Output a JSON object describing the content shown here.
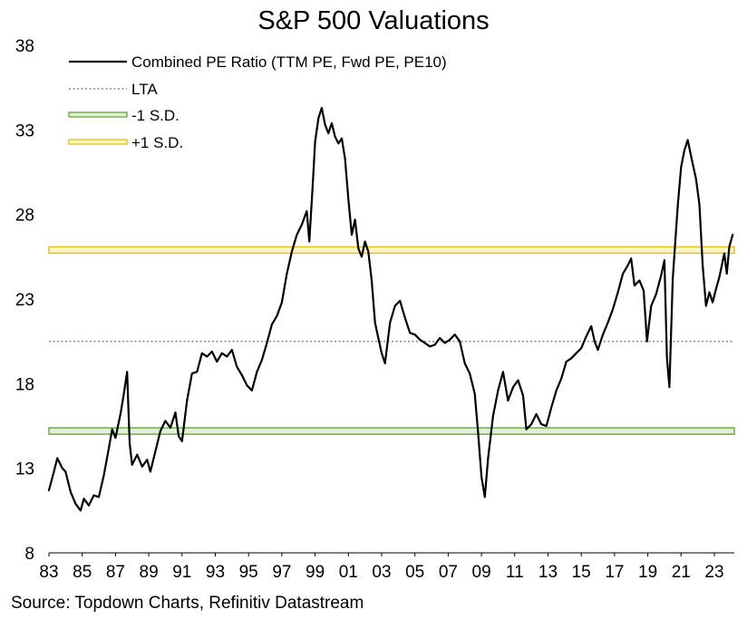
{
  "chart_data": {
    "type": "line",
    "title": "S&P 500 Valuations",
    "xlabel": "",
    "ylabel": "",
    "source": "Source: Topdown Charts, Refinitiv Datastream",
    "xlim": [
      1983.0,
      2024.2
    ],
    "ylim": [
      8,
      38
    ],
    "y_ticks": [
      8,
      13,
      18,
      23,
      28,
      33,
      38
    ],
    "x_ticks": [
      {
        "year": 1983,
        "label": "83"
      },
      {
        "year": 1985,
        "label": "85"
      },
      {
        "year": 1987,
        "label": "87"
      },
      {
        "year": 1989,
        "label": "89"
      },
      {
        "year": 1991,
        "label": "91"
      },
      {
        "year": 1993,
        "label": "93"
      },
      {
        "year": 1995,
        "label": "95"
      },
      {
        "year": 1997,
        "label": "97"
      },
      {
        "year": 1999,
        "label": "99"
      },
      {
        "year": 2001,
        "label": "01"
      },
      {
        "year": 2003,
        "label": "03"
      },
      {
        "year": 2005,
        "label": "05"
      },
      {
        "year": 2007,
        "label": "07"
      },
      {
        "year": 2009,
        "label": "09"
      },
      {
        "year": 2011,
        "label": "11"
      },
      {
        "year": 2013,
        "label": "13"
      },
      {
        "year": 2015,
        "label": "15"
      },
      {
        "year": 2017,
        "label": "17"
      },
      {
        "year": 2019,
        "label": "19"
      },
      {
        "year": 2021,
        "label": "21"
      },
      {
        "year": 2023,
        "label": "23"
      }
    ],
    "legend_position": "top-left",
    "grid": false,
    "reference_lines": [
      {
        "name": "LTA",
        "value": 20.5,
        "style": "dotted",
        "color": "#8c8c8c"
      },
      {
        "name": "-1 S.D.",
        "value": 15.2,
        "style": "double",
        "color": "#70ad47",
        "fill": "#e2efd9"
      },
      {
        "name": "+1 S.D.",
        "value": 25.9,
        "style": "double",
        "color": "#e8c31b",
        "fill": "#fff6c8"
      }
    ],
    "series": [
      {
        "name": "Combined PE Ratio (TTM PE, Fwd PE, PE10)",
        "color": "#000000",
        "points": [
          [
            1983.0,
            11.7
          ],
          [
            1983.3,
            12.8
          ],
          [
            1983.5,
            13.6
          ],
          [
            1983.8,
            13.0
          ],
          [
            1984.0,
            12.8
          ],
          [
            1984.3,
            11.6
          ],
          [
            1984.6,
            10.9
          ],
          [
            1984.9,
            10.5
          ],
          [
            1985.1,
            11.2
          ],
          [
            1985.4,
            10.8
          ],
          [
            1985.7,
            11.4
          ],
          [
            1986.0,
            11.3
          ],
          [
            1986.3,
            12.6
          ],
          [
            1986.6,
            14.2
          ],
          [
            1986.8,
            15.3
          ],
          [
            1987.0,
            14.8
          ],
          [
            1987.3,
            16.2
          ],
          [
            1987.5,
            17.4
          ],
          [
            1987.7,
            18.7
          ],
          [
            1987.85,
            14.5
          ],
          [
            1988.0,
            13.2
          ],
          [
            1988.3,
            13.8
          ],
          [
            1988.6,
            13.1
          ],
          [
            1988.9,
            13.5
          ],
          [
            1989.1,
            12.8
          ],
          [
            1989.4,
            14.0
          ],
          [
            1989.7,
            15.2
          ],
          [
            1990.0,
            15.8
          ],
          [
            1990.3,
            15.4
          ],
          [
            1990.6,
            16.3
          ],
          [
            1990.8,
            14.9
          ],
          [
            1991.0,
            14.6
          ],
          [
            1991.3,
            17.0
          ],
          [
            1991.6,
            18.6
          ],
          [
            1991.9,
            18.7
          ],
          [
            1992.2,
            19.8
          ],
          [
            1992.5,
            19.6
          ],
          [
            1992.8,
            19.9
          ],
          [
            1993.1,
            19.3
          ],
          [
            1993.4,
            19.8
          ],
          [
            1993.7,
            19.6
          ],
          [
            1994.0,
            20.0
          ],
          [
            1994.3,
            19.0
          ],
          [
            1994.6,
            18.5
          ],
          [
            1994.9,
            17.9
          ],
          [
            1995.2,
            17.6
          ],
          [
            1995.5,
            18.7
          ],
          [
            1995.8,
            19.4
          ],
          [
            1996.1,
            20.4
          ],
          [
            1996.4,
            21.5
          ],
          [
            1996.7,
            22.0
          ],
          [
            1997.0,
            22.8
          ],
          [
            1997.3,
            24.5
          ],
          [
            1997.6,
            25.8
          ],
          [
            1997.9,
            26.8
          ],
          [
            1998.2,
            27.4
          ],
          [
            1998.5,
            28.2
          ],
          [
            1998.65,
            26.4
          ],
          [
            1998.85,
            29.6
          ],
          [
            1999.0,
            32.3
          ],
          [
            1999.2,
            33.7
          ],
          [
            1999.4,
            34.3
          ],
          [
            1999.6,
            33.3
          ],
          [
            1999.8,
            32.8
          ],
          [
            2000.0,
            33.4
          ],
          [
            2000.2,
            32.6
          ],
          [
            2000.4,
            32.2
          ],
          [
            2000.6,
            32.5
          ],
          [
            2000.8,
            31.3
          ],
          [
            2001.0,
            28.9
          ],
          [
            2001.2,
            26.8
          ],
          [
            2001.4,
            27.7
          ],
          [
            2001.6,
            26.0
          ],
          [
            2001.8,
            25.5
          ],
          [
            2002.0,
            26.4
          ],
          [
            2002.2,
            25.8
          ],
          [
            2002.4,
            24.1
          ],
          [
            2002.6,
            21.6
          ],
          [
            2002.8,
            20.7
          ],
          [
            2003.0,
            19.8
          ],
          [
            2003.2,
            19.2
          ],
          [
            2003.5,
            21.6
          ],
          [
            2003.8,
            22.6
          ],
          [
            2004.1,
            22.9
          ],
          [
            2004.4,
            21.9
          ],
          [
            2004.7,
            21.0
          ],
          [
            2005.0,
            20.9
          ],
          [
            2005.3,
            20.6
          ],
          [
            2005.6,
            20.4
          ],
          [
            2005.9,
            20.2
          ],
          [
            2006.2,
            20.3
          ],
          [
            2006.5,
            20.7
          ],
          [
            2006.8,
            20.4
          ],
          [
            2007.1,
            20.6
          ],
          [
            2007.4,
            20.9
          ],
          [
            2007.7,
            20.5
          ],
          [
            2008.0,
            19.2
          ],
          [
            2008.3,
            18.6
          ],
          [
            2008.6,
            17.4
          ],
          [
            2008.8,
            15.1
          ],
          [
            2009.0,
            12.5
          ],
          [
            2009.2,
            11.3
          ],
          [
            2009.4,
            13.6
          ],
          [
            2009.7,
            16.1
          ],
          [
            2010.0,
            17.6
          ],
          [
            2010.3,
            18.7
          ],
          [
            2010.6,
            17.0
          ],
          [
            2010.9,
            17.8
          ],
          [
            2011.2,
            18.2
          ],
          [
            2011.5,
            17.3
          ],
          [
            2011.7,
            15.3
          ],
          [
            2012.0,
            15.6
          ],
          [
            2012.3,
            16.2
          ],
          [
            2012.6,
            15.6
          ],
          [
            2012.9,
            15.5
          ],
          [
            2013.2,
            16.6
          ],
          [
            2013.5,
            17.6
          ],
          [
            2013.8,
            18.3
          ],
          [
            2014.1,
            19.3
          ],
          [
            2014.4,
            19.5
          ],
          [
            2014.7,
            19.8
          ],
          [
            2015.0,
            20.1
          ],
          [
            2015.3,
            20.8
          ],
          [
            2015.6,
            21.4
          ],
          [
            2015.8,
            20.5
          ],
          [
            2016.0,
            20.0
          ],
          [
            2016.3,
            20.9
          ],
          [
            2016.6,
            21.6
          ],
          [
            2016.9,
            22.4
          ],
          [
            2017.2,
            23.4
          ],
          [
            2017.5,
            24.5
          ],
          [
            2017.8,
            25.0
          ],
          [
            2018.0,
            25.4
          ],
          [
            2018.2,
            23.8
          ],
          [
            2018.5,
            24.1
          ],
          [
            2018.75,
            23.5
          ],
          [
            2018.95,
            20.5
          ],
          [
            2019.2,
            22.6
          ],
          [
            2019.5,
            23.3
          ],
          [
            2019.8,
            24.4
          ],
          [
            2020.0,
            25.3
          ],
          [
            2020.15,
            19.5
          ],
          [
            2020.3,
            17.8
          ],
          [
            2020.5,
            24.2
          ],
          [
            2020.8,
            28.5
          ],
          [
            2021.0,
            30.8
          ],
          [
            2021.2,
            31.8
          ],
          [
            2021.4,
            32.4
          ],
          [
            2021.7,
            31.0
          ],
          [
            2021.9,
            30.1
          ],
          [
            2022.1,
            28.6
          ],
          [
            2022.3,
            25.0
          ],
          [
            2022.5,
            22.6
          ],
          [
            2022.7,
            23.4
          ],
          [
            2022.9,
            22.8
          ],
          [
            2023.1,
            23.6
          ],
          [
            2023.3,
            24.3
          ],
          [
            2023.6,
            25.7
          ],
          [
            2023.75,
            24.5
          ],
          [
            2023.9,
            26.1
          ],
          [
            2024.1,
            26.8
          ]
        ]
      }
    ]
  }
}
